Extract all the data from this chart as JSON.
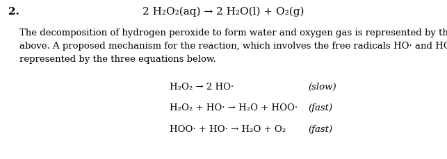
{
  "background_color": "#ffffff",
  "fig_width": 6.43,
  "fig_height": 2.29,
  "dpi": 100,
  "question_number": "2.",
  "question_number_fontsize": 11,
  "main_equation": "2 H₂O₂(aq) → 2 H₂O(l) + O₂(g)",
  "main_eq_fontsize": 11,
  "body_text_lines": [
    "The decomposition of hydrogen peroxide to form water and oxygen gas is represented by the equation",
    "above. A proposed mechanism for the reaction, which involves the free radicals HO· and HOO· , is",
    "represented by the three equations below."
  ],
  "body_text_fontsize": 9.5,
  "sub_equations": [
    {
      "equation": "H₂O₂ → 2 HO·",
      "rate": "(slow)"
    },
    {
      "equation": "H₂O₂ + HO· → H₂O + HOO·",
      "rate": "(fast)"
    },
    {
      "equation": "HOO· + HO· → H₂O + O₂",
      "rate": "(fast)"
    }
  ],
  "sub_eq_fontsize": 9.5,
  "rate_fontsize": 9.5
}
